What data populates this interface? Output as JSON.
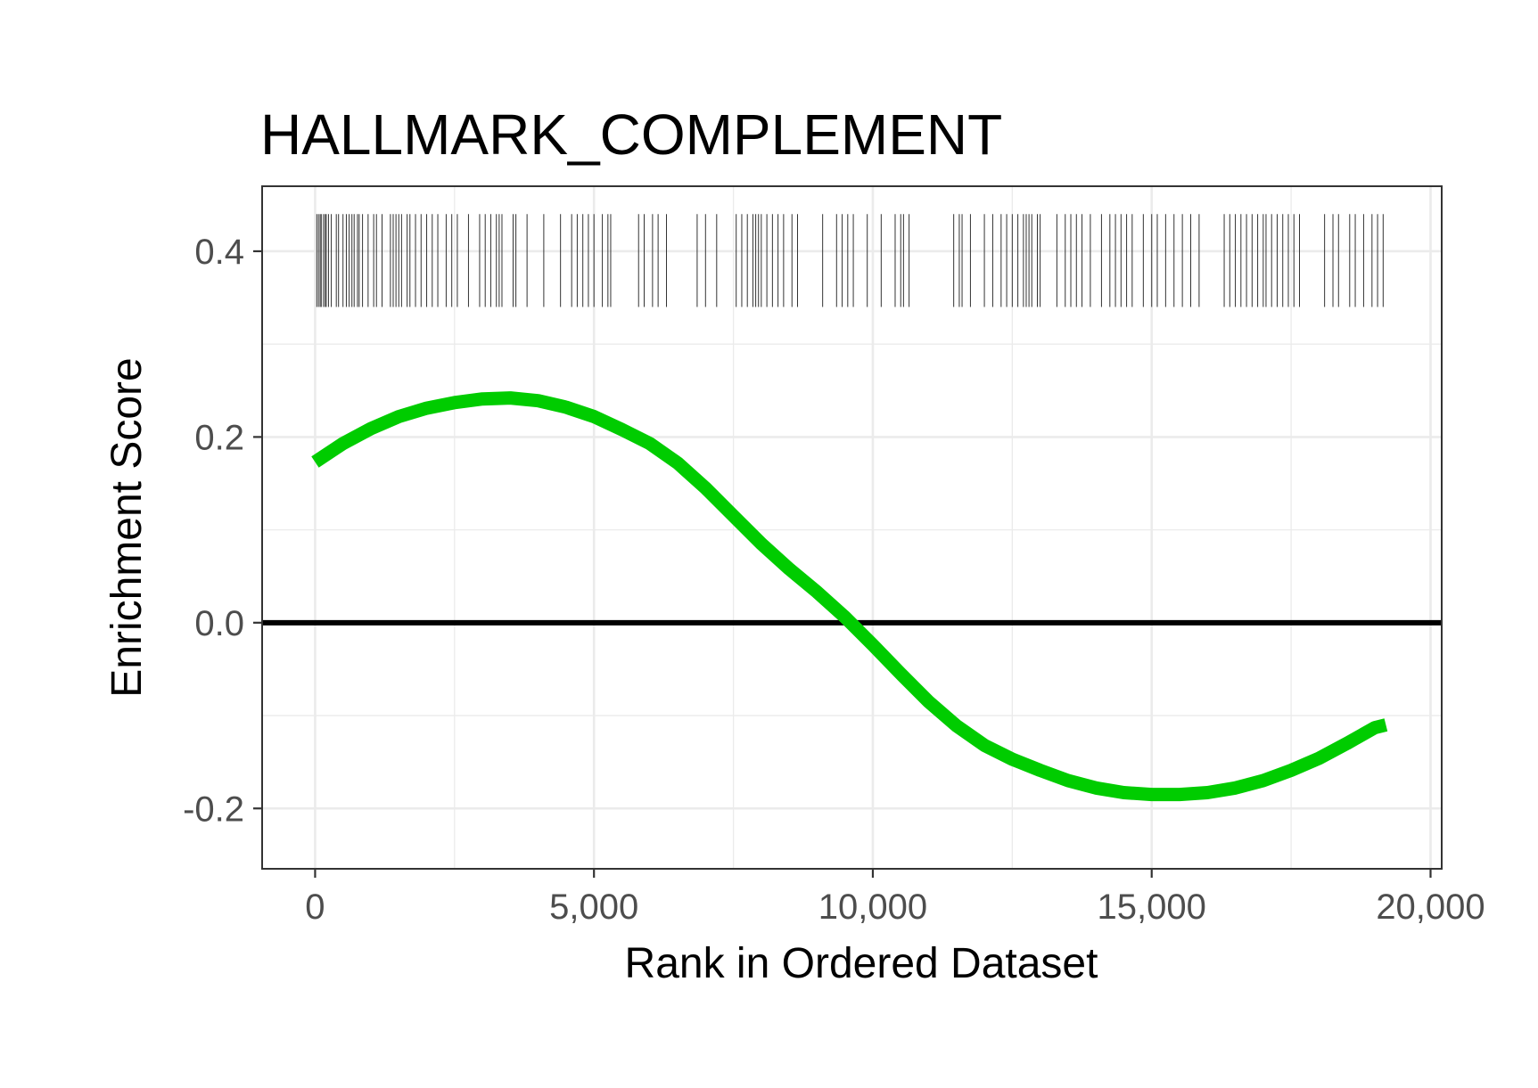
{
  "chart_data": {
    "type": "line",
    "title": "HALLMARK_COMPLEMENT",
    "xlabel": "Rank in Ordered Dataset",
    "ylabel": "Enrichment Score",
    "xlim": [
      -950,
      20200
    ],
    "ylim": [
      -0.265,
      0.47
    ],
    "x_ticks": [
      0,
      5000,
      10000,
      15000,
      20000
    ],
    "x_tick_labels": [
      "0",
      "5,000",
      "10,000",
      "15,000",
      "20,000"
    ],
    "y_ticks": [
      -0.2,
      0.0,
      0.2,
      0.4
    ],
    "y_tick_labels": [
      "-0.2",
      "0.0",
      "0.2",
      "0.4"
    ],
    "grid": true,
    "reference_line_y": 0,
    "line_color": "#00cc00",
    "series": [
      {
        "x": [
          0,
          500,
          1000,
          1500,
          2000,
          2500,
          3000,
          3500,
          4000,
          4500,
          5000,
          5500,
          6000,
          6500,
          7000,
          7500,
          8000,
          8500,
          9000,
          9500,
          10000,
          10500,
          11000,
          11500,
          12000,
          12500,
          13000,
          13500,
          14000,
          14500,
          15000,
          15500,
          16000,
          16500,
          17000,
          17500,
          18000,
          18500,
          19000,
          19200
        ],
        "y": [
          0.173,
          0.193,
          0.209,
          0.222,
          0.231,
          0.237,
          0.241,
          0.242,
          0.239,
          0.232,
          0.222,
          0.208,
          0.193,
          0.172,
          0.145,
          0.115,
          0.085,
          0.058,
          0.033,
          0.006,
          -0.024,
          -0.055,
          -0.085,
          -0.111,
          -0.132,
          -0.147,
          -0.159,
          -0.17,
          -0.178,
          -0.183,
          -0.185,
          -0.185,
          -0.183,
          -0.178,
          -0.17,
          -0.159,
          -0.146,
          -0.13,
          -0.113,
          -0.11
        ]
      }
    ],
    "hit_ranks": [
      30,
      60,
      90,
      110,
      150,
      180,
      200,
      240,
      290,
      380,
      420,
      500,
      560,
      610,
      660,
      700,
      760,
      790,
      850,
      950,
      1050,
      1100,
      1200,
      1350,
      1400,
      1450,
      1500,
      1550,
      1650,
      1700,
      1800,
      1900,
      2000,
      2100,
      2200,
      2350,
      2450,
      2550,
      2750,
      2950,
      3050,
      3150,
      3250,
      3300,
      3350,
      3550,
      3600,
      3800,
      4100,
      4400,
      4600,
      4700,
      4800,
      4900,
      5000,
      5150,
      5250,
      5300,
      5800,
      5900,
      6050,
      6150,
      6300,
      6850,
      7000,
      7200,
      7550,
      7650,
      7750,
      7850,
      7900,
      7950,
      8000,
      8100,
      8200,
      8300,
      8400,
      8550,
      8650,
      9100,
      9350,
      9450,
      9550,
      9650,
      9900,
      10150,
      10400,
      10500,
      10550,
      10650,
      11450,
      11550,
      11600,
      11750,
      12000,
      12150,
      12300,
      12400,
      12500,
      12600,
      12700,
      12750,
      12800,
      12850,
      12950,
      13000,
      13300,
      13450,
      13550,
      13650,
      13750,
      13900,
      14100,
      14250,
      14350,
      14450,
      14550,
      14650,
      14850,
      15000,
      15100,
      15250,
      15400,
      15550,
      15700,
      15850,
      16300,
      16400,
      16500,
      16600,
      16700,
      16800,
      16900,
      17000,
      17050,
      17150,
      17250,
      17350,
      17450,
      17550,
      17650,
      18100,
      18250,
      18350,
      18550,
      18650,
      18800,
      18950,
      19050,
      19150
    ]
  }
}
